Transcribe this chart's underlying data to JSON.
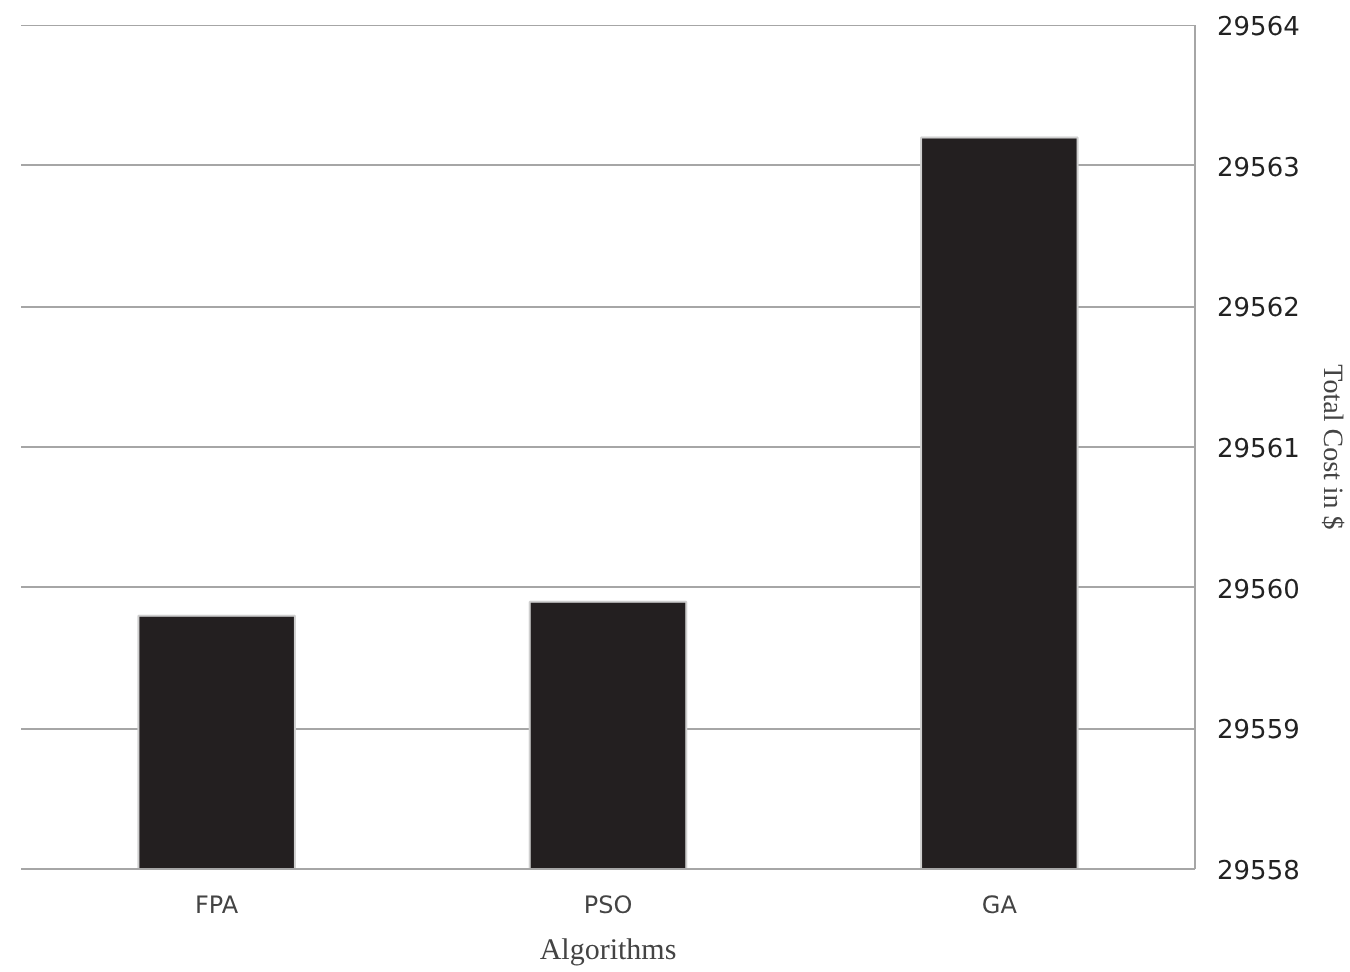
{
  "chart_data": {
    "type": "bar",
    "xlabel": "Algorithms",
    "ylabel": "Total Cost in $",
    "categories": [
      "FPA",
      "PSO",
      "GA"
    ],
    "values": [
      29559.8,
      29559.9,
      29563.2
    ],
    "color": "#231f20",
    "ylim": [
      29558,
      29564
    ],
    "yticks": [
      29558,
      29559,
      29560,
      29561,
      29562,
      29563,
      29564
    ],
    "grid": "y"
  }
}
